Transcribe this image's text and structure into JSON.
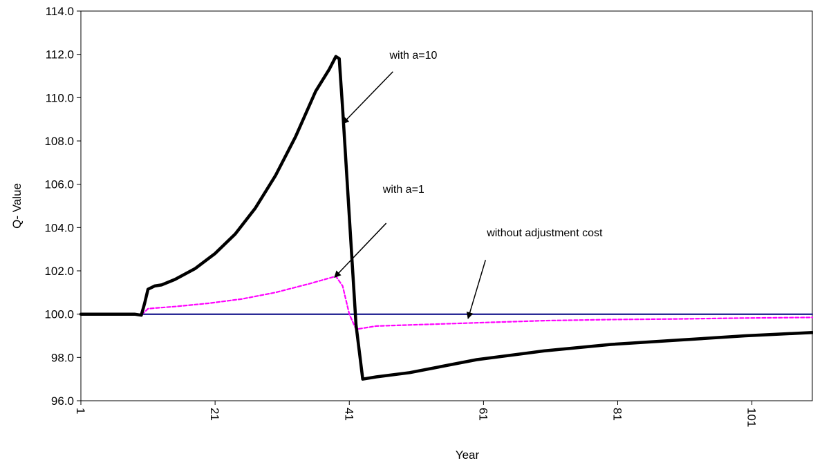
{
  "chart_data": {
    "type": "line",
    "xlabel": "Year",
    "ylabel": "Q- Value",
    "xlim": [
      1,
      110
    ],
    "ylim": [
      96.0,
      114.0
    ],
    "x_ticks": [
      "1",
      "21",
      "41",
      "61",
      "81",
      "101"
    ],
    "y_ticks": [
      "96.0",
      "98.0",
      "100.0",
      "102.0",
      "104.0",
      "106.0",
      "108.0",
      "110.0",
      "112.0",
      "114.0"
    ],
    "grid": false,
    "legend": "none",
    "series": [
      {
        "color": "#000000",
        "style": "solid",
        "x": [
          1,
          5,
          9,
          10,
          10.5,
          11,
          12,
          13,
          15,
          18,
          21,
          24,
          27,
          30,
          33,
          36,
          38,
          39,
          39.5,
          40,
          42,
          43,
          45,
          50,
          60,
          70,
          80,
          90,
          100,
          110
        ],
        "y": [
          100.0,
          100.0,
          100.0,
          99.95,
          100.5,
          101.15,
          101.3,
          101.35,
          101.6,
          102.1,
          102.8,
          103.7,
          104.9,
          106.4,
          108.2,
          110.3,
          111.3,
          111.9,
          111.8,
          109.5,
          99.5,
          97.0,
          97.1,
          97.3,
          97.9,
          98.3,
          98.6,
          98.8,
          99.0,
          99.15
        ]
      },
      {
        "color": "#ff00ff",
        "style": "dashed",
        "x": [
          1,
          5,
          9,
          10,
          10.5,
          11,
          12,
          15,
          20,
          25,
          30,
          35,
          39,
          40,
          41,
          42,
          43,
          45,
          50,
          60,
          70,
          80,
          90,
          100,
          110
        ],
        "y": [
          100.0,
          100.0,
          100.0,
          99.97,
          100.1,
          100.25,
          100.28,
          100.35,
          100.5,
          100.7,
          101.0,
          101.4,
          101.75,
          101.3,
          100.0,
          99.3,
          99.35,
          99.45,
          99.5,
          99.6,
          99.7,
          99.75,
          99.78,
          99.82,
          99.85
        ]
      },
      {
        "color": "#000080",
        "style": "solid",
        "x": [
          1,
          110
        ],
        "y": [
          100.0,
          100.0
        ]
      }
    ],
    "annotations": [
      {
        "text": "with a=10",
        "text_x": 47,
        "text_y": 111.8,
        "from_x": 47.5,
        "from_y": 111.2,
        "to_x": 40.0,
        "to_y": 108.8
      },
      {
        "text": "with a=1",
        "text_x": 46,
        "text_y": 105.6,
        "from_x": 46.5,
        "from_y": 104.2,
        "to_x": 38.8,
        "to_y": 101.7
      },
      {
        "text": "without adjustment cost",
        "text_x": 61.5,
        "text_y": 103.6,
        "from_x": 61.3,
        "from_y": 102.5,
        "to_x": 58.7,
        "to_y": 99.8
      }
    ]
  }
}
